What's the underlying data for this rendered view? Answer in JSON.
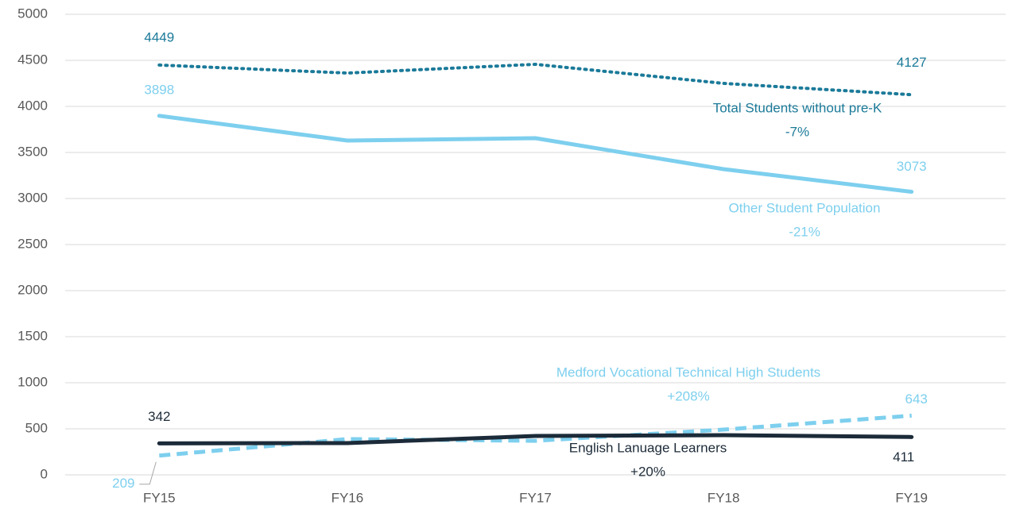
{
  "chart_data": {
    "type": "line",
    "categories": [
      "FY15",
      "FY16",
      "FY17",
      "FY18",
      "FY19"
    ],
    "series": [
      {
        "name": "Total Students without pre-K",
        "annotation": "-7%",
        "color": "#1b7a99",
        "style": "dotted",
        "values": [
          4449,
          4362,
          4457,
          4250,
          4127
        ]
      },
      {
        "name": "Other Student Population",
        "annotation": "-21%",
        "color": "#7dcfee",
        "style": "solid",
        "values": [
          3898,
          3629,
          3655,
          3319,
          3073
        ]
      },
      {
        "name": "Medford Vocational Technical High Students",
        "annotation": "+208%",
        "color": "#7dcfee",
        "style": "dashed",
        "values": [
          209,
          388,
          370,
          491,
          643
        ]
      },
      {
        "name": "English Lanuage Learners",
        "annotation": "+20%",
        "color": "#1c2b39",
        "style": "solid",
        "values": [
          342,
          345,
          422,
          431,
          411
        ]
      }
    ],
    "ylim": [
      0,
      5000
    ],
    "yticks": [
      0,
      500,
      1000,
      1500,
      2000,
      2500,
      3000,
      3500,
      4000,
      4500,
      5000
    ],
    "grid": true
  }
}
